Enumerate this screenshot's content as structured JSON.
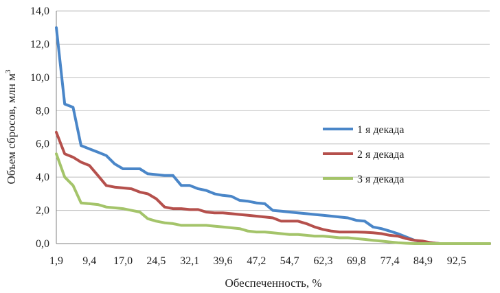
{
  "chart_data": {
    "type": "line",
    "title": "",
    "xlabel": "Обеспеченность, %",
    "ylabel": "Объем сбросов, млн м",
    "ylabel_sup": "3",
    "xlim": [
      1.9,
      100
    ],
    "ylim": [
      0,
      14
    ],
    "y_ticks": [
      0,
      2,
      4,
      6,
      8,
      10,
      12,
      14
    ],
    "y_tick_labels": [
      "0,0",
      "2,0",
      "4,0",
      "6,0",
      "8,0",
      "10,0",
      "12,0",
      "14,0"
    ],
    "x_ticks": [
      1.9,
      9.4,
      17.0,
      24.5,
      32.1,
      39.6,
      47.2,
      54.7,
      62.3,
      69.8,
      77.4,
      84.9,
      92.5
    ],
    "x_tick_labels": [
      "1,9",
      "9,4",
      "17,0",
      "24,5",
      "32,1",
      "39,6",
      "47,2",
      "54,7",
      "62,3",
      "69,8",
      "77,4",
      "84,9",
      "92,5"
    ],
    "grid": true,
    "legend_position": "right",
    "series": [
      {
        "name": "1 я декада",
        "color": "#4a86c8",
        "points": [
          [
            1.9,
            13.0
          ],
          [
            3.8,
            8.4
          ],
          [
            5.7,
            8.2
          ],
          [
            7.5,
            5.9
          ],
          [
            9.4,
            5.7
          ],
          [
            11.3,
            5.5
          ],
          [
            13.2,
            5.3
          ],
          [
            15.1,
            4.8
          ],
          [
            17.0,
            4.5
          ],
          [
            18.9,
            4.5
          ],
          [
            20.8,
            4.5
          ],
          [
            22.6,
            4.2
          ],
          [
            24.5,
            4.15
          ],
          [
            26.4,
            4.1
          ],
          [
            28.3,
            4.1
          ],
          [
            30.2,
            3.5
          ],
          [
            32.1,
            3.5
          ],
          [
            34.0,
            3.3
          ],
          [
            35.8,
            3.2
          ],
          [
            37.7,
            3.0
          ],
          [
            39.6,
            2.9
          ],
          [
            41.5,
            2.85
          ],
          [
            43.4,
            2.6
          ],
          [
            45.3,
            2.55
          ],
          [
            47.2,
            2.45
          ],
          [
            49.1,
            2.4
          ],
          [
            50.9,
            2.0
          ],
          [
            52.8,
            1.95
          ],
          [
            54.7,
            1.9
          ],
          [
            56.6,
            1.85
          ],
          [
            58.5,
            1.8
          ],
          [
            60.4,
            1.75
          ],
          [
            62.3,
            1.7
          ],
          [
            64.2,
            1.65
          ],
          [
            66.0,
            1.6
          ],
          [
            67.9,
            1.55
          ],
          [
            69.8,
            1.4
          ],
          [
            71.7,
            1.35
          ],
          [
            73.6,
            1.0
          ],
          [
            75.5,
            0.9
          ],
          [
            77.4,
            0.75
          ],
          [
            79.2,
            0.6
          ],
          [
            81.1,
            0.4
          ],
          [
            83.0,
            0.2
          ],
          [
            84.9,
            0.1
          ],
          [
            86.8,
            0.05
          ],
          [
            88.7,
            0.0
          ],
          [
            90.6,
            0.0
          ],
          [
            92.5,
            0.0
          ],
          [
            94.3,
            0.0
          ],
          [
            96.2,
            0.0
          ],
          [
            98.1,
            0.0
          ],
          [
            100.0,
            0.0
          ]
        ]
      },
      {
        "name": "2 я декада",
        "color": "#b5504c",
        "points": [
          [
            1.9,
            6.7
          ],
          [
            3.8,
            5.4
          ],
          [
            5.7,
            5.2
          ],
          [
            7.5,
            4.9
          ],
          [
            9.4,
            4.7
          ],
          [
            11.3,
            4.1
          ],
          [
            13.2,
            3.5
          ],
          [
            15.1,
            3.4
          ],
          [
            17.0,
            3.35
          ],
          [
            18.9,
            3.3
          ],
          [
            20.8,
            3.1
          ],
          [
            22.6,
            3.0
          ],
          [
            24.5,
            2.7
          ],
          [
            26.4,
            2.2
          ],
          [
            28.3,
            2.1
          ],
          [
            30.2,
            2.1
          ],
          [
            32.1,
            2.05
          ],
          [
            34.0,
            2.05
          ],
          [
            35.8,
            1.9
          ],
          [
            37.7,
            1.85
          ],
          [
            39.6,
            1.85
          ],
          [
            41.5,
            1.8
          ],
          [
            43.4,
            1.75
          ],
          [
            45.3,
            1.7
          ],
          [
            47.2,
            1.65
          ],
          [
            49.1,
            1.6
          ],
          [
            50.9,
            1.55
          ],
          [
            52.8,
            1.35
          ],
          [
            54.7,
            1.35
          ],
          [
            56.6,
            1.35
          ],
          [
            58.5,
            1.2
          ],
          [
            60.4,
            1.0
          ],
          [
            62.3,
            0.85
          ],
          [
            64.2,
            0.75
          ],
          [
            66.0,
            0.7
          ],
          [
            67.9,
            0.7
          ],
          [
            69.8,
            0.7
          ],
          [
            71.7,
            0.68
          ],
          [
            73.6,
            0.65
          ],
          [
            75.5,
            0.6
          ],
          [
            77.4,
            0.5
          ],
          [
            79.2,
            0.45
          ],
          [
            81.1,
            0.3
          ],
          [
            83.0,
            0.2
          ],
          [
            84.9,
            0.15
          ],
          [
            86.8,
            0.05
          ],
          [
            88.7,
            0.0
          ],
          [
            90.6,
            0.0
          ],
          [
            92.5,
            0.0
          ],
          [
            94.3,
            0.0
          ],
          [
            96.2,
            0.0
          ],
          [
            98.1,
            0.0
          ],
          [
            100.0,
            0.0
          ]
        ]
      },
      {
        "name": "3 я декада",
        "color": "#a4c46a",
        "points": [
          [
            1.9,
            5.4
          ],
          [
            3.8,
            4.0
          ],
          [
            5.7,
            3.5
          ],
          [
            7.5,
            2.45
          ],
          [
            9.4,
            2.4
          ],
          [
            11.3,
            2.35
          ],
          [
            13.2,
            2.2
          ],
          [
            15.1,
            2.15
          ],
          [
            17.0,
            2.1
          ],
          [
            18.9,
            2.0
          ],
          [
            20.8,
            1.9
          ],
          [
            22.6,
            1.5
          ],
          [
            24.5,
            1.35
          ],
          [
            26.4,
            1.25
          ],
          [
            28.3,
            1.2
          ],
          [
            30.2,
            1.1
          ],
          [
            32.1,
            1.1
          ],
          [
            34.0,
            1.1
          ],
          [
            35.8,
            1.1
          ],
          [
            37.7,
            1.05
          ],
          [
            39.6,
            1.0
          ],
          [
            41.5,
            0.95
          ],
          [
            43.4,
            0.9
          ],
          [
            45.3,
            0.75
          ],
          [
            47.2,
            0.7
          ],
          [
            49.1,
            0.7
          ],
          [
            50.9,
            0.65
          ],
          [
            52.8,
            0.6
          ],
          [
            54.7,
            0.55
          ],
          [
            56.6,
            0.55
          ],
          [
            58.5,
            0.5
          ],
          [
            60.4,
            0.45
          ],
          [
            62.3,
            0.45
          ],
          [
            64.2,
            0.4
          ],
          [
            66.0,
            0.35
          ],
          [
            67.9,
            0.35
          ],
          [
            69.8,
            0.3
          ],
          [
            71.7,
            0.25
          ],
          [
            73.6,
            0.2
          ],
          [
            75.5,
            0.15
          ],
          [
            77.4,
            0.1
          ],
          [
            79.2,
            0.05
          ],
          [
            81.1,
            0.02
          ],
          [
            83.0,
            0.0
          ],
          [
            84.9,
            0.0
          ],
          [
            86.8,
            0.0
          ],
          [
            88.7,
            0.0
          ],
          [
            90.6,
            0.0
          ],
          [
            92.5,
            0.0
          ],
          [
            94.3,
            0.0
          ],
          [
            96.2,
            0.0
          ],
          [
            98.1,
            0.0
          ],
          [
            100.0,
            0.0
          ]
        ]
      }
    ]
  }
}
